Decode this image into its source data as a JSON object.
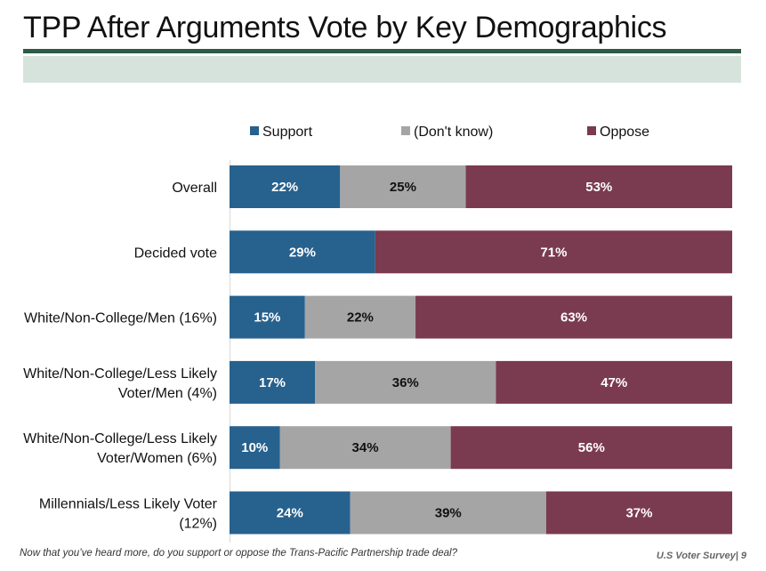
{
  "header": {
    "title": "TPP After Arguments Vote by Key Demographics"
  },
  "footer": {
    "question": "Now that you’ve heard more, do you support or oppose the Trans-Pacific Partnership trade deal?",
    "source": "U.S Voter Survey| 9"
  },
  "colors": {
    "support": "#27618e",
    "dont_know": "#a5a5a5",
    "oppose": "#7a3a4f",
    "title_rule": "#2e5b45",
    "title_band": "#d6e3dc"
  },
  "chart_data": {
    "type": "bar",
    "orientation": "horizontal",
    "stacked": true,
    "percent_scale": [
      0,
      100
    ],
    "legend_position": "top",
    "grid": false,
    "categories": [
      [
        "Overall"
      ],
      [
        "Decided vote"
      ],
      [
        "White/Non-College/Men (16%)"
      ],
      [
        "White/Non-College/Less Likely",
        "Voter/Men (4%)"
      ],
      [
        "White/Non-College/Less Likely",
        "Voter/Women (6%)"
      ],
      [
        "Millennials/Less Likely Voter",
        "(12%)"
      ]
    ],
    "series": [
      {
        "name": "Support",
        "color_key": "support",
        "values": [
          22,
          29,
          15,
          17,
          10,
          24
        ]
      },
      {
        "name": "(Don't know)",
        "color_key": "dont_know",
        "values": [
          25,
          null,
          22,
          36,
          34,
          39
        ]
      },
      {
        "name": "Oppose",
        "color_key": "oppose",
        "values": [
          53,
          71,
          63,
          47,
          56,
          37
        ]
      }
    ],
    "value_suffix": "%"
  }
}
